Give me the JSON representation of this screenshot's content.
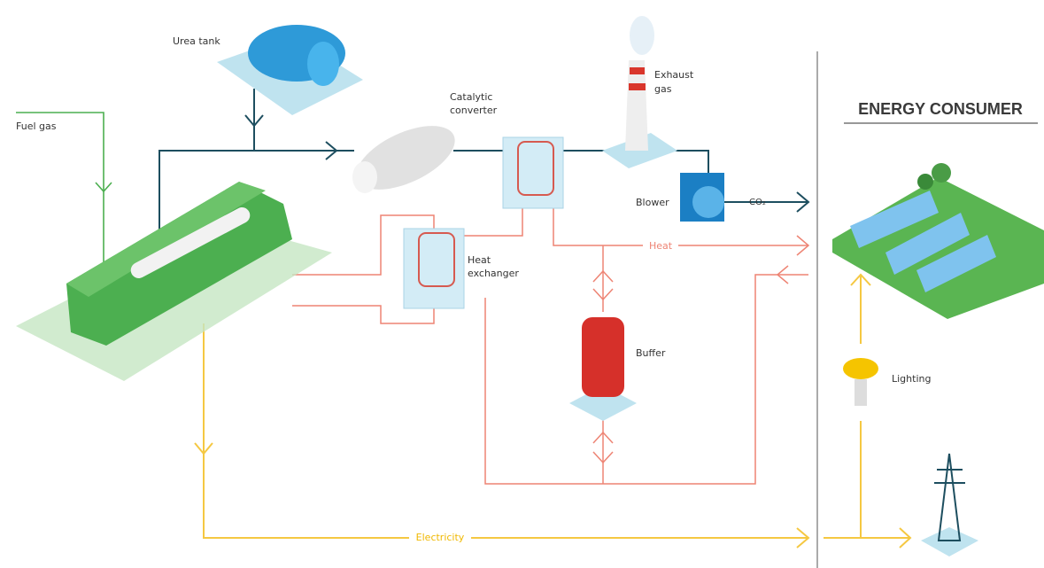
{
  "title": "ENERGY CONSUMER",
  "nodes": [
    {
      "label": [
        "Fuel gas"
      ]
    },
    {
      "label": [
        "Urea tank"
      ]
    },
    {
      "label": [
        "Catalytic",
        "converter"
      ]
    },
    {
      "label": [
        "Exhaust",
        "gas"
      ]
    },
    {
      "label": [
        "Blower"
      ]
    },
    {
      "label": [
        "Heat",
        "exchanger"
      ]
    },
    {
      "label": [
        "Buffer"
      ]
    },
    {
      "label": [
        "Lighting"
      ]
    }
  ],
  "flows": [
    {
      "label": "CO₂"
    },
    {
      "label": "Heat"
    },
    {
      "label": "Electricity"
    }
  ]
}
